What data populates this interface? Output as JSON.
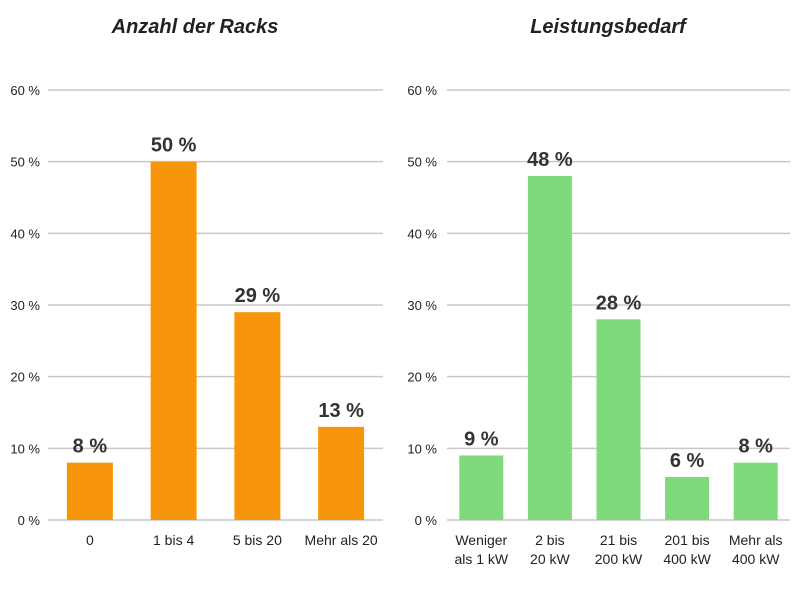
{
  "chart_data": [
    {
      "type": "bar",
      "title": "Anzahl der Racks",
      "categories": [
        [
          "0"
        ],
        [
          "1 bis 4"
        ],
        [
          "5 bis 20"
        ],
        [
          "Mehr als 20"
        ]
      ],
      "values": [
        8,
        50,
        29,
        13
      ],
      "value_labels": [
        "8 %",
        "50 %",
        "29 %",
        "13 %"
      ],
      "ylim": [
        0,
        60
      ],
      "yticks": [
        0,
        10,
        20,
        30,
        40,
        50,
        60
      ],
      "ytick_labels": [
        "0 %",
        "10 %",
        "20 %",
        "30 %",
        "40 %",
        "50 %",
        "60 %"
      ],
      "grid": true,
      "color": "#f7960a",
      "xlabel": "",
      "ylabel": ""
    },
    {
      "type": "bar",
      "title": "Leistungsbedarf",
      "categories": [
        [
          "Weniger",
          "als 1 kW"
        ],
        [
          "2 bis",
          "20 kW"
        ],
        [
          "21 bis",
          "200 kW"
        ],
        [
          "201 bis",
          "400 kW"
        ],
        [
          "Mehr als",
          "400 kW"
        ]
      ],
      "values": [
        9,
        48,
        28,
        6,
        8
      ],
      "value_labels": [
        "9 %",
        "48 %",
        "28 %",
        "6 %",
        "8 %"
      ],
      "ylim": [
        0,
        60
      ],
      "yticks": [
        0,
        10,
        20,
        30,
        40,
        50,
        60
      ],
      "ytick_labels": [
        "0 %",
        "10 %",
        "20 %",
        "30 %",
        "40 %",
        "50 %",
        "60 %"
      ],
      "grid": true,
      "color": "#7fda7c",
      "xlabel": "",
      "ylabel": ""
    }
  ]
}
